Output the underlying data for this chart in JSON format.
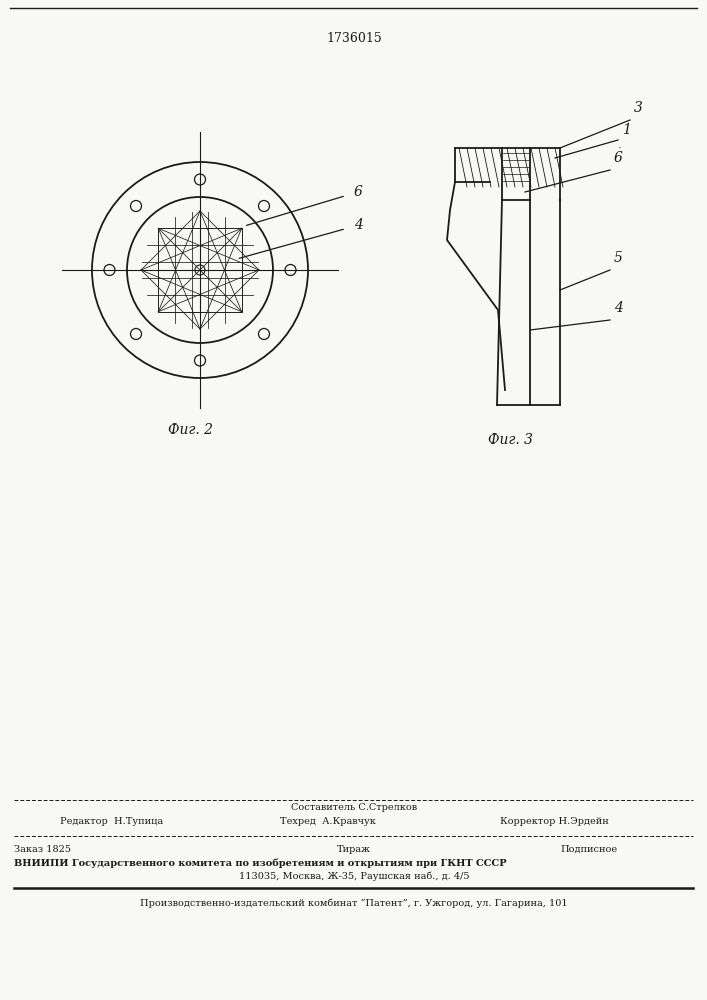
{
  "patent_number": "1736015",
  "fig2_label": "Фиг. 2",
  "fig3_label": "Фиг. 3",
  "bg_color": "#f8f8f5",
  "line_color": "#1a1a1a",
  "footer_sostavitel": "Составитель С.Стрелков",
  "footer_editor": "Редактор  Н.Тупица",
  "footer_tech": "Техред  А.Кравчук",
  "footer_corrector": "Корректор Н.Эрдейн",
  "footer_order": "Заказ 1825",
  "footer_tirazh": "Тираж",
  "footer_podpisnoe": "Подписное",
  "footer_vniipii": "ВНИИПИ Государственного комитета по изобретениям и открытиям при ГКНТ СССР",
  "footer_address": "113035, Москва, Ж-35, Раушская наб., д. 4/5",
  "footer_patent": "Производственно-издательский комбинат “Патент”, г. Ужгород, ул. Гагарина, 101"
}
